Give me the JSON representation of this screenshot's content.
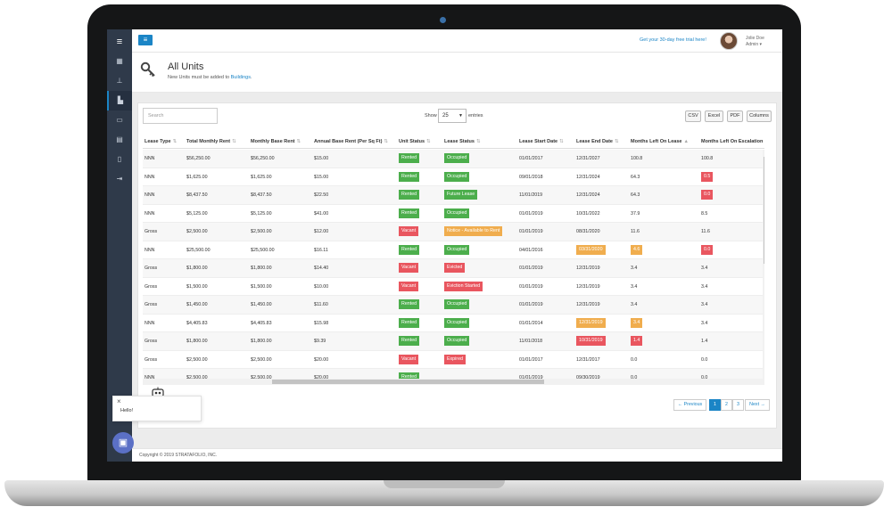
{
  "topbar": {
    "trial_link": "Get your 30-day free trial here!",
    "user_name": "Jolie Doe",
    "user_role": "Admin ▾"
  },
  "page": {
    "title": "All Units",
    "subtitle_prefix": "New Units must be added to ",
    "subtitle_link": "Buildings",
    "subtitle_suffix": "."
  },
  "toolbar": {
    "search_placeholder": "Search",
    "show_label": "Show",
    "page_size": "25",
    "entries_label": "entries",
    "buttons": [
      "CSV",
      "Excel",
      "PDF",
      "Columns"
    ]
  },
  "table": {
    "columns": [
      "Lease Type",
      "Total Monthly Rent",
      "Monthly Base Rent",
      "Annual Base Rent (Per Sq Ft)",
      "Unit Status",
      "Lease Status",
      "Lease Start Date",
      "Lease End Date",
      "Months Left On Lease",
      "Months Left On Escalation"
    ],
    "rows": [
      [
        "NNN",
        "$56,250.00",
        "$56,250.00",
        "$15.00",
        "Rented",
        "Occupied",
        "01/01/2017",
        "12/31/2027",
        "100.8",
        "100.8"
      ],
      [
        "NNN",
        "$1,625.00",
        "$1,625.00",
        "$15.00",
        "Rented",
        "Occupied",
        "09/01/2018",
        "12/31/2024",
        "64.3",
        "0.5"
      ],
      [
        "NNN",
        "$8,437.50",
        "$8,437.50",
        "$22.50",
        "Rented",
        "Future Lease",
        "11/01/2019",
        "12/31/2024",
        "64.3",
        "0.0"
      ],
      [
        "NNN",
        "$5,125.00",
        "$5,125.00",
        "$41.00",
        "Rented",
        "Occupied",
        "01/01/2019",
        "10/31/2022",
        "37.9",
        "8.5"
      ],
      [
        "Gross",
        "$2,500.00",
        "$2,500.00",
        "$12.00",
        "Vacant",
        "Notice - Available to Rent",
        "01/01/2019",
        "08/31/2020",
        "11.6",
        "11.6"
      ],
      [
        "NNN",
        "$25,500.00",
        "$25,500.00",
        "$16.11",
        "Rented",
        "Occupied",
        "04/01/2016",
        "03/31/2020",
        "4.6",
        "0.0"
      ],
      [
        "Gross",
        "$1,800.00",
        "$1,800.00",
        "$14.40",
        "Vacant",
        "Evicted",
        "01/01/2019",
        "12/31/2019",
        "3.4",
        "3.4"
      ],
      [
        "Gross",
        "$1,500.00",
        "$1,500.00",
        "$10.00",
        "Vacant",
        "Eviction Started",
        "01/01/2019",
        "12/31/2019",
        "3.4",
        "3.4"
      ],
      [
        "Gross",
        "$1,450.00",
        "$1,450.00",
        "$11.60",
        "Rented",
        "Occupied",
        "01/01/2019",
        "12/31/2019",
        "3.4",
        "3.4"
      ],
      [
        "NNN",
        "$4,405.83",
        "$4,405.83",
        "$15.98",
        "Rented",
        "Occupied",
        "01/01/2014",
        "12/31/2019",
        "3.4",
        "3.4"
      ],
      [
        "Gross",
        "$1,800.00",
        "$1,800.00",
        "$9.39",
        "Rented",
        "Occupied",
        "11/01/2018",
        "10/31/2019",
        "1.4",
        "1.4"
      ],
      [
        "Gross",
        "$2,500.00",
        "$2,500.00",
        "$20.00",
        "Vacant",
        "Expired",
        "01/01/2017",
        "12/31/2017",
        "0.0",
        "0.0"
      ],
      [
        "NNN",
        "$2,500.00",
        "$2,500.00",
        "$20.00",
        "Rented",
        "",
        "01/01/2019",
        "09/30/2019",
        "0.0",
        "0.0"
      ]
    ]
  },
  "status_colors": {
    "Rented": "#4cae4c",
    "Vacant": "#e9565f",
    "Occupied": "#4cae4c",
    "Future Lease": "#4cae4c",
    "Notice - Available to Rent": "#f0ad4e",
    "Evicted": "#e9565f",
    "Eviction Started": "#e9565f",
    "Expired": "#e9565f"
  },
  "pagination": {
    "previous": "← Previous",
    "pages": [
      "1",
      "2",
      "3"
    ],
    "next": "Next →",
    "active_page": "1"
  },
  "chat": {
    "greeting": "Hello!",
    "close": "×"
  },
  "footer": {
    "copyright": "Copyright © 2019 STRATAFOLIO, INC."
  }
}
